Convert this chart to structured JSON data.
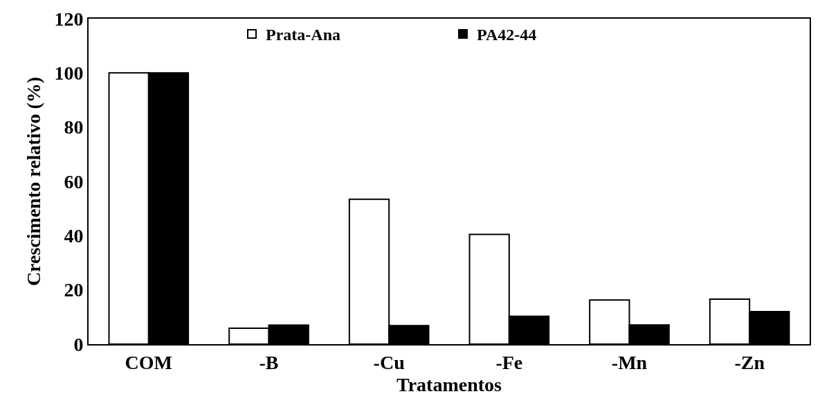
{
  "chart_data": {
    "type": "bar",
    "xlabel": "Tratamentos",
    "ylabel": "Crescimento relativo (%)",
    "categories": [
      "COM",
      "-B",
      "-Cu",
      "-Fe",
      "-Mn",
      "-Zn"
    ],
    "series": [
      {
        "name": "Prata-Ana",
        "color": "#ffffff",
        "values": [
          100,
          5.9,
          53.4,
          40.5,
          16.3,
          16.6
        ]
      },
      {
        "name": "PA42-44",
        "color": "#000000",
        "values": [
          100,
          7.0,
          6.8,
          10.3,
          7.1,
          12.0
        ]
      }
    ],
    "ylim": [
      0,
      120
    ],
    "yticks": [
      0,
      20,
      40,
      60,
      80,
      100,
      120
    ],
    "legend": "top"
  }
}
